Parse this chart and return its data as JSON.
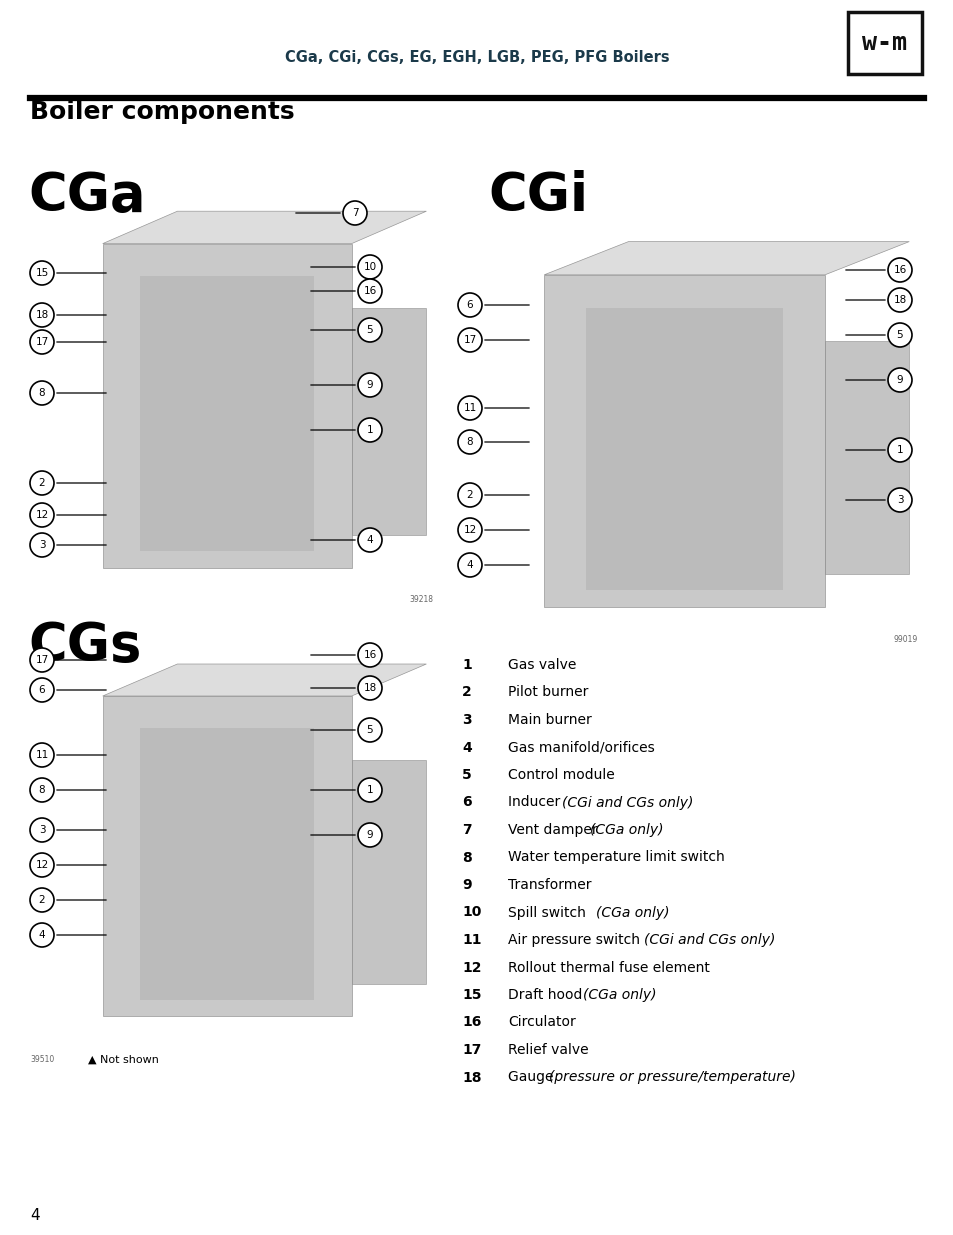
{
  "header_title": "CGa, CGi, CGs, EG, EGH, LGB, PEG, PFG Boilers",
  "section_title": "Boiler components",
  "page_number": "4",
  "legend_items": [
    {
      "num": "1",
      "text": "Gas valve",
      "italic": ""
    },
    {
      "num": "2",
      "text": "Pilot burner",
      "italic": ""
    },
    {
      "num": "3",
      "text": "Main burner",
      "italic": ""
    },
    {
      "num": "4",
      "text": "Gas manifold/orifices",
      "italic": ""
    },
    {
      "num": "5",
      "text": "Control module",
      "italic": ""
    },
    {
      "num": "6",
      "text": "Inducer ",
      "italic": "(CGi and CGs only)"
    },
    {
      "num": "7",
      "text": "Vent damper ",
      "italic": "(CGa only)"
    },
    {
      "num": "8",
      "text": "Water temperature limit switch",
      "italic": ""
    },
    {
      "num": "9",
      "text": "Transformer",
      "italic": ""
    },
    {
      "num": "10",
      "text": "Spill switch ",
      "italic": "(CGa only)"
    },
    {
      "num": "11",
      "text": "Air pressure switch ",
      "italic": "(CGi and CGs only)"
    },
    {
      "num": "12",
      "text": "Rollout thermal fuse element",
      "italic": ""
    },
    {
      "num": "15",
      "text": "Draft hood ",
      "italic": "(CGa only)"
    },
    {
      "num": "16",
      "text": "Circulator",
      "italic": ""
    },
    {
      "num": "17",
      "text": "Relief valve",
      "italic": ""
    },
    {
      "num": "18",
      "text": "Gauge ",
      "italic": "(pressure or pressure/temperature)"
    }
  ],
  "bg_color": "#ffffff",
  "header_color": "#1b3a4a",
  "not_shown_text": "▲ Not shown",
  "cga_image_num": "39218",
  "cgi_image_num": "99019",
  "cgs_image_num": "39510",
  "cga_callouts_right": [
    [
      355,
      213,
      "7"
    ],
    [
      370,
      267,
      "10"
    ],
    [
      370,
      291,
      "16"
    ],
    [
      370,
      330,
      "5"
    ],
    [
      370,
      385,
      "9"
    ],
    [
      370,
      430,
      "1"
    ]
  ],
  "cga_callouts_left": [
    [
      42,
      273,
      "15"
    ],
    [
      42,
      315,
      "18"
    ],
    [
      42,
      342,
      "17"
    ],
    [
      42,
      393,
      "8"
    ],
    [
      42,
      483,
      "2"
    ],
    [
      42,
      515,
      "12"
    ],
    [
      42,
      545,
      "3"
    ],
    [
      370,
      540,
      "4"
    ]
  ],
  "cgi_callouts_right": [
    [
      900,
      270,
      "16"
    ],
    [
      900,
      300,
      "18"
    ],
    [
      900,
      335,
      "5"
    ],
    [
      900,
      380,
      "9"
    ],
    [
      900,
      450,
      "1"
    ],
    [
      900,
      500,
      "3"
    ]
  ],
  "cgi_callouts_left": [
    [
      470,
      305,
      "6"
    ],
    [
      470,
      340,
      "17"
    ],
    [
      470,
      408,
      "11"
    ],
    [
      470,
      442,
      "8"
    ],
    [
      470,
      495,
      "2"
    ],
    [
      470,
      530,
      "12"
    ],
    [
      470,
      565,
      "4"
    ]
  ],
  "cgs_callouts_right": [
    [
      370,
      655,
      "16"
    ],
    [
      370,
      688,
      "18"
    ],
    [
      370,
      730,
      "5"
    ],
    [
      370,
      790,
      "1"
    ],
    [
      370,
      835,
      "9"
    ]
  ],
  "cgs_callouts_left": [
    [
      42,
      660,
      "17"
    ],
    [
      42,
      690,
      "6"
    ],
    [
      42,
      755,
      "11"
    ],
    [
      42,
      790,
      "8"
    ],
    [
      42,
      830,
      "3"
    ],
    [
      42,
      865,
      "12"
    ],
    [
      42,
      900,
      "2"
    ],
    [
      42,
      935,
      "4"
    ]
  ]
}
